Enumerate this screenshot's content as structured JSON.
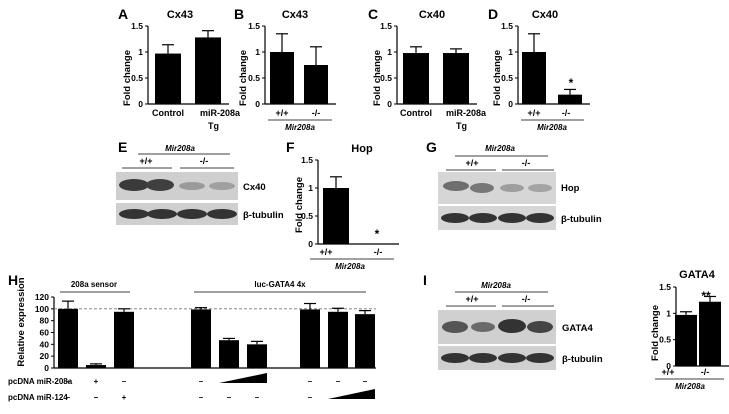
{
  "panels": {
    "A": {
      "label": "A",
      "title": "Cx43",
      "ylabel": "Fold change"
    },
    "B": {
      "label": "B",
      "title": "Cx43",
      "ylabel": "Fold change",
      "gene": "Mir208a"
    },
    "C": {
      "label": "C",
      "title": "Cx40",
      "ylabel": "Fold change"
    },
    "D": {
      "label": "D",
      "title": "Cx40",
      "ylabel": "Fold change",
      "gene": "Mir208a",
      "star": "*"
    },
    "E": {
      "label": "E",
      "gene": "Mir208a",
      "wt": "+/+",
      "ko": "-/-",
      "band1": "Cx40",
      "band2": "β-tubulin"
    },
    "F": {
      "label": "F",
      "title": "Hop",
      "ylabel": "Fold change",
      "gene": "Mir208a",
      "star": "*"
    },
    "G": {
      "label": "G",
      "gene": "Mir208a",
      "wt": "+/+",
      "ko": "-/-",
      "band1": "Hop",
      "band2": "β-tubulin"
    },
    "H": {
      "label": "H",
      "group1": "208a sensor",
      "group2": "luc-GATA4 4x",
      "ylabel": "Relative expression",
      "row1": "pcDNA miR-208a",
      "row2": "pcDNA miR-124"
    },
    "I": {
      "label": "I",
      "gene": "Mir208a",
      "wt": "+/+",
      "ko": "-/-",
      "band1": "GATA4",
      "band2": "β-tubulin",
      "title": "GATA4",
      "ylabel": "Fold change",
      "star": "**"
    }
  },
  "colors": {
    "bar": "#000000",
    "blot_bg": "#d9d9d9",
    "band": "#4a4a4a"
  },
  "chart_data": [
    {
      "id": "A",
      "type": "bar",
      "title": "Cx43",
      "ylabel": "Fold change",
      "categories": [
        "Control",
        "miR-208a\nTg"
      ],
      "values": [
        0.97,
        1.28
      ],
      "errors": [
        0.17,
        0.13
      ],
      "ylim": [
        0,
        1.5
      ],
      "yticks": [
        "0",
        "0.5",
        "1",
        "1.5"
      ]
    },
    {
      "id": "B",
      "type": "bar",
      "title": "Cx43",
      "ylabel": "Fold change",
      "categories": [
        "+/+",
        "-/-"
      ],
      "values": [
        1.0,
        0.75
      ],
      "errors": [
        0.35,
        0.35
      ],
      "ylim": [
        0,
        1.5
      ],
      "yticks": [
        "0",
        "0.5",
        "1",
        "1.5"
      ]
    },
    {
      "id": "C",
      "type": "bar",
      "title": "Cx40",
      "ylabel": "Fold change",
      "categories": [
        "Control",
        "miR-208a\nTg"
      ],
      "values": [
        0.98,
        0.98
      ],
      "errors": [
        0.12,
        0.08
      ],
      "ylim": [
        0,
        1.5
      ],
      "yticks": [
        "0",
        "0.5",
        "1",
        "1.5"
      ]
    },
    {
      "id": "D",
      "type": "bar",
      "title": "Cx40",
      "ylabel": "Fold change",
      "categories": [
        "+/+",
        "-/-"
      ],
      "values": [
        1.0,
        0.18
      ],
      "errors": [
        0.35,
        0.1
      ],
      "ylim": [
        0,
        1.5
      ],
      "yticks": [
        "0",
        "0.5",
        "1",
        "1.5"
      ]
    },
    {
      "id": "F",
      "type": "bar",
      "title": "Hop",
      "ylabel": "Fold change",
      "categories": [
        "+/+",
        "-/-"
      ],
      "values": [
        1.0,
        0.0
      ],
      "errors": [
        0.2,
        0.0
      ],
      "ylim": [
        0,
        1.5
      ],
      "yticks": [
        "0",
        "0.5",
        "1",
        "1.5"
      ]
    },
    {
      "id": "H",
      "type": "bar",
      "ylabel": "Relative expression",
      "values": [
        100,
        5,
        95,
        99,
        47,
        40,
        99,
        95,
        91
      ],
      "errors": [
        13,
        2,
        5,
        3,
        3,
        5,
        10,
        6,
        6
      ],
      "ylim": [
        0,
        120
      ],
      "yticks": [
        "0",
        "20",
        "40",
        "60",
        "80",
        "100",
        "120"
      ],
      "reference_line": 100,
      "row1_marks": [
        "–",
        "+",
        "–",
        "–",
        "ramp",
        "",
        "–",
        "–",
        "–"
      ],
      "row2_marks": [
        "–",
        "–",
        "+",
        "–",
        "–",
        "–",
        "–",
        "ramp",
        ""
      ]
    },
    {
      "id": "I",
      "type": "bar",
      "title": "GATA4",
      "ylabel": "Fold change",
      "categories": [
        "+/+",
        "-/-"
      ],
      "values": [
        0.97,
        1.22
      ],
      "errors": [
        0.06,
        0.1
      ],
      "ylim": [
        0,
        1.5
      ],
      "yticks": [
        "0",
        "0.5",
        "1",
        "1.5"
      ]
    }
  ]
}
